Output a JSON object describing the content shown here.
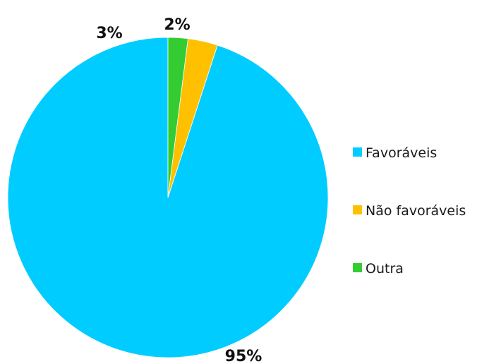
{
  "chart_data": {
    "type": "pie",
    "title": "",
    "legend_position": "right",
    "start_angle_deg": 0,
    "direction": "counterclockwise",
    "slices": [
      {
        "name": "Favoráveis",
        "value": 95,
        "label": "95%",
        "color": "#00CCFF"
      },
      {
        "name": "Não favoráveis",
        "value": 3,
        "label": "3%",
        "color": "#FFC000"
      },
      {
        "name": "Outra",
        "value": 2,
        "label": "2%",
        "color": "#33CC33"
      }
    ]
  }
}
